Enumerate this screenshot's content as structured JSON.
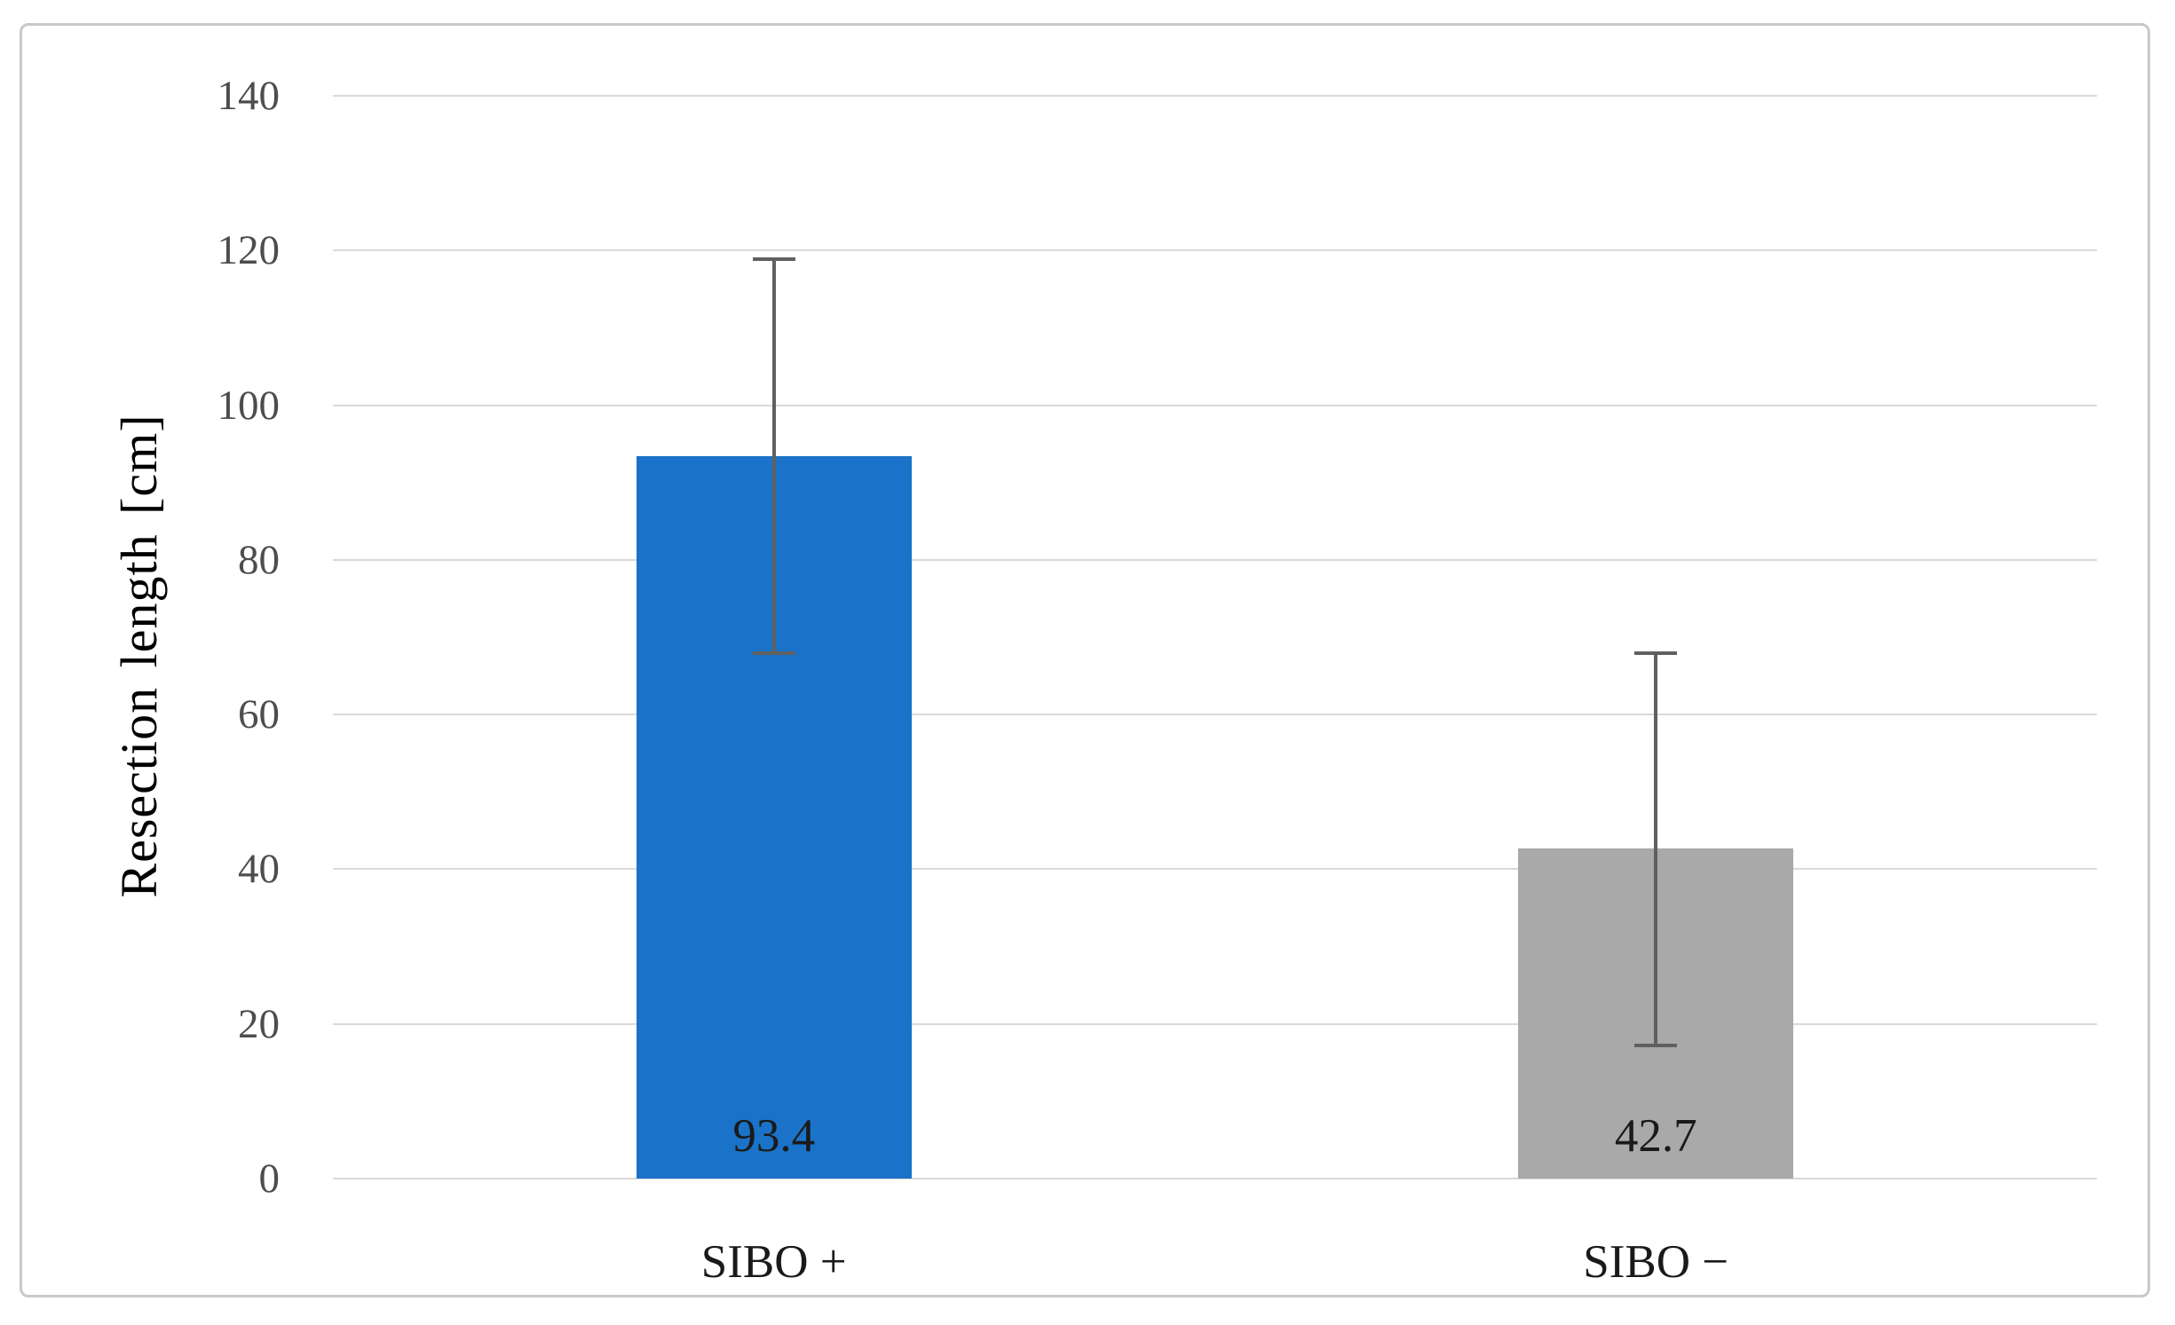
{
  "figure": {
    "background_color": "#ffffff",
    "frame_border_color": "#c9c9c9"
  },
  "chart_data": {
    "type": "bar",
    "title": "",
    "xlabel": "",
    "ylabel": "Resection length [cm]",
    "categories": [
      "SIBO +",
      "SIBO −"
    ],
    "values": [
      93.4,
      42.7
    ],
    "data_labels": [
      "93.4",
      "42.7"
    ],
    "bar_colors": [
      "#1a73c8",
      "#a9a9a9"
    ],
    "error_bars": [
      {
        "low": 67.9,
        "high": 118.9
      },
      {
        "low": 17.2,
        "high": 67.9
      }
    ],
    "error_bar_color": "#606060",
    "ylim": [
      0,
      140
    ],
    "yticks": [
      0,
      20,
      40,
      60,
      80,
      100,
      120,
      140
    ],
    "ytick_labels": [
      "0",
      "20",
      "40",
      "60",
      "80",
      "100",
      "120",
      "140"
    ],
    "grid": true,
    "gridline_color": "#d9d9d9",
    "axis_line_color": "#d9d9d9",
    "tick_label_color": "#4d4d4d",
    "label_text_color": "#1a1a1a",
    "legend_position": "none"
  }
}
